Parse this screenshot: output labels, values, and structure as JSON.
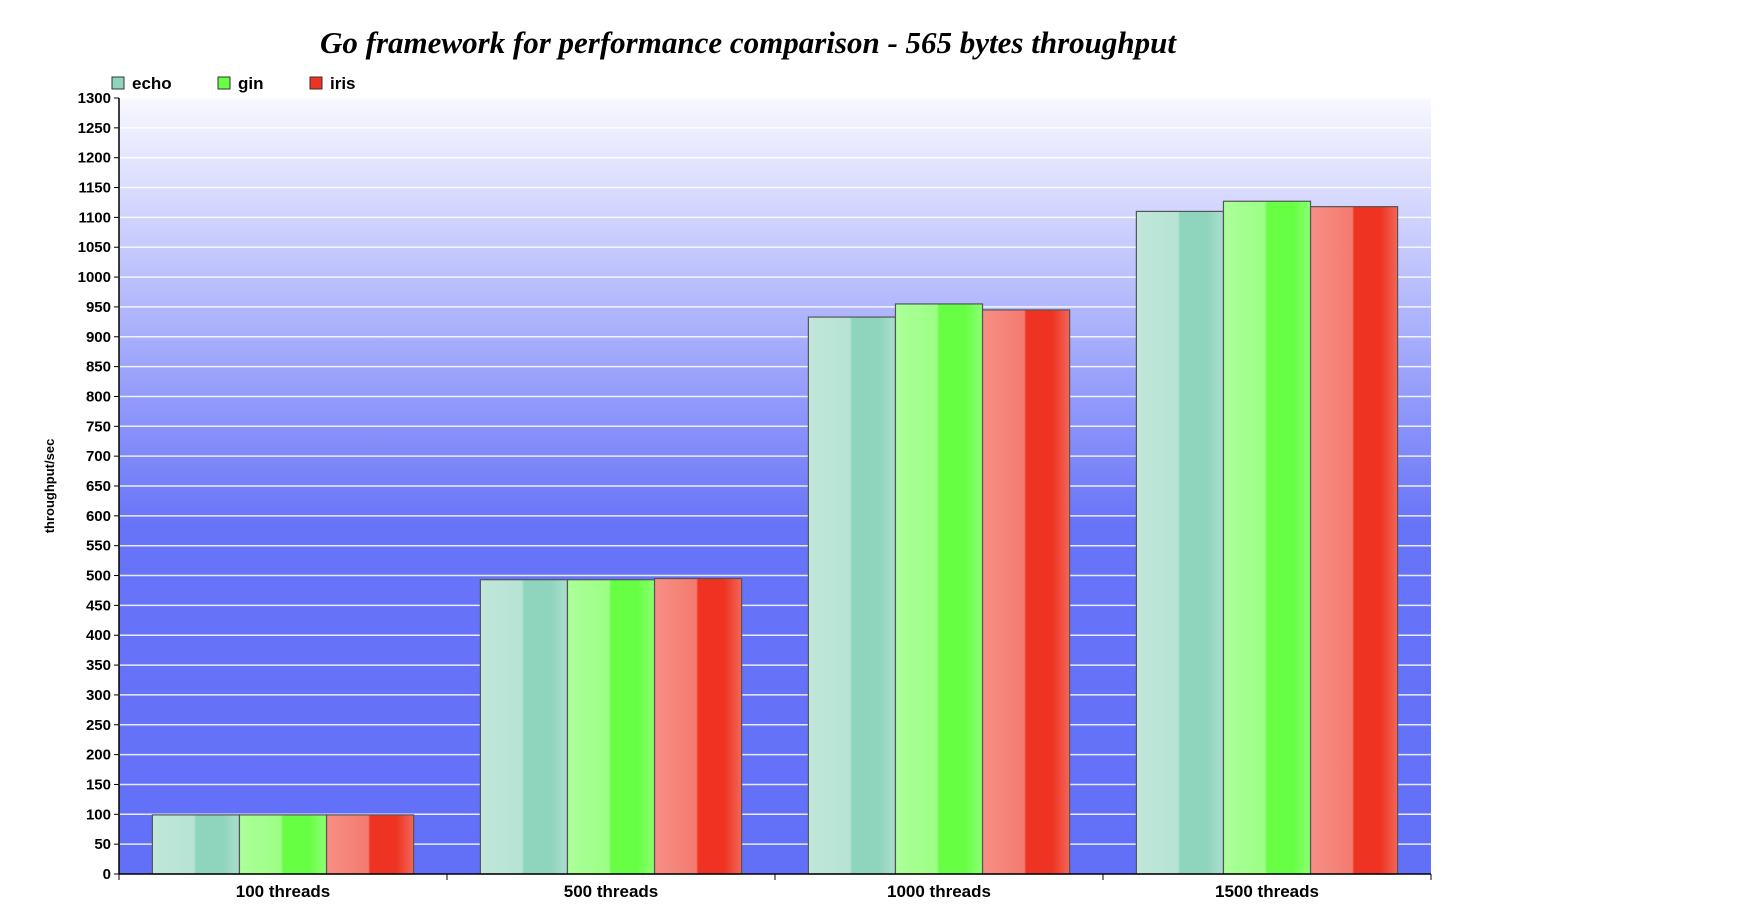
{
  "chart_data": {
    "type": "bar",
    "title": "Go framework for performance comparison - 565 bytes throughput",
    "xlabel": "",
    "ylabel": "throughput/sec",
    "categories": [
      "100 threads",
      "500 threads",
      "1000 threads",
      "1500 threads"
    ],
    "series": [
      {
        "name": "echo",
        "values": [
          99,
          493,
          933,
          1110
        ],
        "color": "#8fd4bc"
      },
      {
        "name": "gin",
        "values": [
          99,
          493,
          955,
          1127
        ],
        "color": "#66ff44"
      },
      {
        "name": "iris",
        "values": [
          99,
          495,
          945,
          1118
        ],
        "color": "#ee3322"
      }
    ],
    "ylim": [
      0,
      1300
    ],
    "ytick_step": 50,
    "grid": true,
    "legend_position": "top-left",
    "background_gradient": [
      "#f8f8ff",
      "#6270f8"
    ]
  }
}
